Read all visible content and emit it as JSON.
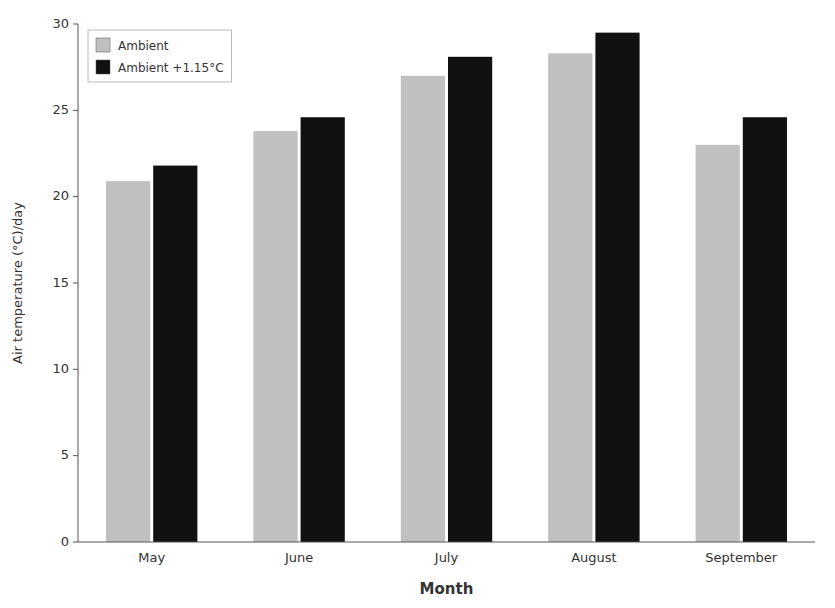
{
  "chart_data": {
    "type": "bar",
    "xlabel": "Month",
    "ylabel": "Air temperature (°C)/day",
    "categories": [
      "May",
      "June",
      "July",
      "August",
      "September"
    ],
    "series": [
      {
        "name": "Ambient",
        "color": "#c0c0c0",
        "values": [
          20.9,
          23.8,
          27.0,
          28.3,
          23.0
        ]
      },
      {
        "name": "Ambient +1.15°C",
        "color": "#111111",
        "values": [
          21.8,
          24.6,
          28.1,
          29.5,
          24.6
        ]
      }
    ],
    "ylim": [
      0,
      30
    ],
    "yticks": [
      0,
      5,
      10,
      15,
      20,
      25,
      30
    ],
    "grid": false,
    "legend": "upper left"
  }
}
